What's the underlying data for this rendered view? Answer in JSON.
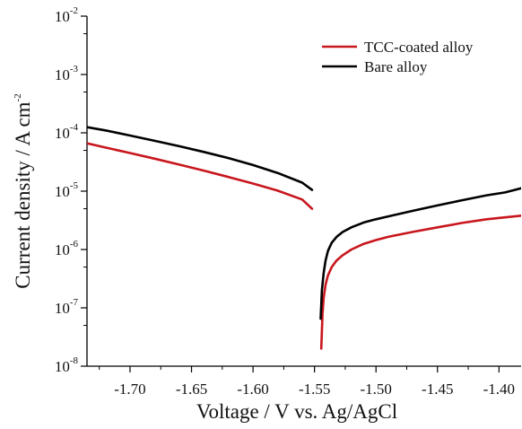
{
  "chart_data": {
    "type": "line",
    "title": "",
    "xlabel": "Voltage / V vs. Ag/AgCl",
    "ylabel_main": "Current density / A cm",
    "ylabel_sup": "-2",
    "xlim": [
      -1.735,
      -1.382
    ],
    "ylim": [
      1e-08,
      0.01
    ],
    "yscale": "log",
    "grid": false,
    "legend_position": "top-right",
    "xticks": [
      {
        "value": -1.7,
        "label": "-1.70"
      },
      {
        "value": -1.65,
        "label": "-1.65"
      },
      {
        "value": -1.6,
        "label": "-1.60"
      },
      {
        "value": -1.55,
        "label": "-1.55"
      },
      {
        "value": -1.5,
        "label": "-1.50"
      },
      {
        "value": -1.45,
        "label": "-1.45"
      },
      {
        "value": -1.4,
        "label": "-1.40"
      }
    ],
    "yticks": [
      {
        "value": 0.01,
        "base": "10",
        "exp": "-2"
      },
      {
        "value": 0.001,
        "base": "10",
        "exp": "-3"
      },
      {
        "value": 0.0001,
        "base": "10",
        "exp": "-4"
      },
      {
        "value": 1e-05,
        "base": "10",
        "exp": "-5"
      },
      {
        "value": 1e-06,
        "base": "10",
        "exp": "-6"
      },
      {
        "value": 1e-07,
        "base": "10",
        "exp": "-7"
      },
      {
        "value": 1e-08,
        "base": "10",
        "exp": "-8"
      }
    ],
    "series": [
      {
        "name": "TCC-coated alloy",
        "color": "#c8161d",
        "segments": [
          {
            "x": [
              -1.735,
              -1.72,
              -1.7,
              -1.68,
              -1.66,
              -1.64,
              -1.62,
              -1.6,
              -1.58,
              -1.56,
              -1.552
            ],
            "y": [
              6.6e-05,
              5.6e-05,
              4.5e-05,
              3.6e-05,
              2.85e-05,
              2.25e-05,
              1.75e-05,
              1.35e-05,
              1.02e-05,
              7.2e-06,
              5e-06
            ]
          },
          {
            "x": [
              -1.5445,
              -1.5435,
              -1.5425,
              -1.541,
              -1.539,
              -1.536,
              -1.532,
              -1.527,
              -1.52,
              -1.51,
              -1.5,
              -1.49,
              -1.47,
              -1.45,
              -1.43,
              -1.41,
              -1.382
            ],
            "y": [
              2e-08,
              8e-08,
              1.5e-07,
              2.5e-07,
              3.6e-07,
              5e-07,
              6.5e-07,
              8e-07,
              1e-06,
              1.25e-06,
              1.45e-06,
              1.65e-06,
              2e-06,
              2.4e-06,
              2.85e-06,
              3.3e-06,
              3.8e-06
            ]
          }
        ]
      },
      {
        "name": "Bare alloy",
        "color": "#000000",
        "segments": [
          {
            "x": [
              -1.735,
              -1.72,
              -1.7,
              -1.68,
              -1.66,
              -1.64,
              -1.62,
              -1.6,
              -1.58,
              -1.56,
              -1.552
            ],
            "y": [
              0.000125,
              0.00011,
              9e-05,
              7.3e-05,
              5.9e-05,
              4.7e-05,
              3.7e-05,
              2.8e-05,
              2.05e-05,
              1.4e-05,
              1.05e-05
            ]
          },
          {
            "x": [
              -1.545,
              -1.544,
              -1.5425,
              -1.541,
              -1.539,
              -1.536,
              -1.532,
              -1.527,
              -1.52,
              -1.51,
              -1.5,
              -1.49,
              -1.47,
              -1.45,
              -1.43,
              -1.41,
              -1.395,
              -1.382
            ],
            "y": [
              6.5e-08,
              2e-07,
              4e-07,
              6.5e-07,
              9.5e-07,
              1.3e-06,
              1.65e-06,
              2e-06,
              2.4e-06,
              2.9e-06,
              3.3e-06,
              3.7e-06,
              4.6e-06,
              5.7e-06,
              7e-06,
              8.5e-06,
              9.5e-06,
              1.12e-05
            ]
          }
        ]
      }
    ]
  }
}
